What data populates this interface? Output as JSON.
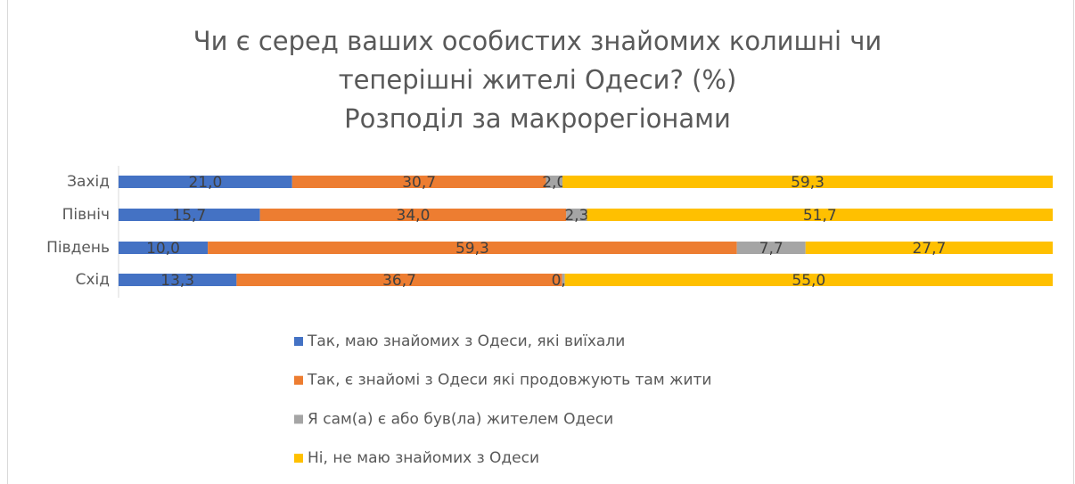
{
  "chart_data": {
    "type": "bar",
    "orientation": "horizontal",
    "stacking": "percent",
    "title": [
      "Чи є серед ваших особистих знайомих колишні чи",
      "теперішні жителі Одеси? (%)",
      "Розподіл за макрорегіонами"
    ],
    "categories": [
      "Захід",
      "Північ",
      "Південь",
      "Схід"
    ],
    "series": [
      {
        "name": "Так, маю знайомих з Одеси, які виїхали",
        "color": "#4472c4",
        "values": [
          21.0,
          15.7,
          10.0,
          13.3
        ],
        "value_labels": [
          "21,0",
          "15,7",
          "10,0",
          "13,3"
        ]
      },
      {
        "name": "Так, є знайомі з Одеси які продовжують там жити",
        "color": "#ed7d31",
        "values": [
          30.7,
          34.0,
          59.3,
          36.7
        ],
        "value_labels": [
          "30,7",
          "34,0",
          "59,3",
          "36,7"
        ]
      },
      {
        "name": "Я сам(а) є або був(ла) жителем Одеси",
        "color": "#a5a5a5",
        "values": [
          2.0,
          2.3,
          7.7,
          0.3
        ],
        "value_labels": [
          "2,0",
          "2,3",
          "7,7",
          "0,3"
        ]
      },
      {
        "name": "Ні, не маю знайомих з Одеси",
        "color": "#ffc000",
        "values": [
          59.3,
          51.7,
          27.7,
          55.0
        ],
        "value_labels": [
          "59,3",
          "51,7",
          "27,7",
          "55,0"
        ]
      }
    ],
    "legend": "bottom"
  }
}
